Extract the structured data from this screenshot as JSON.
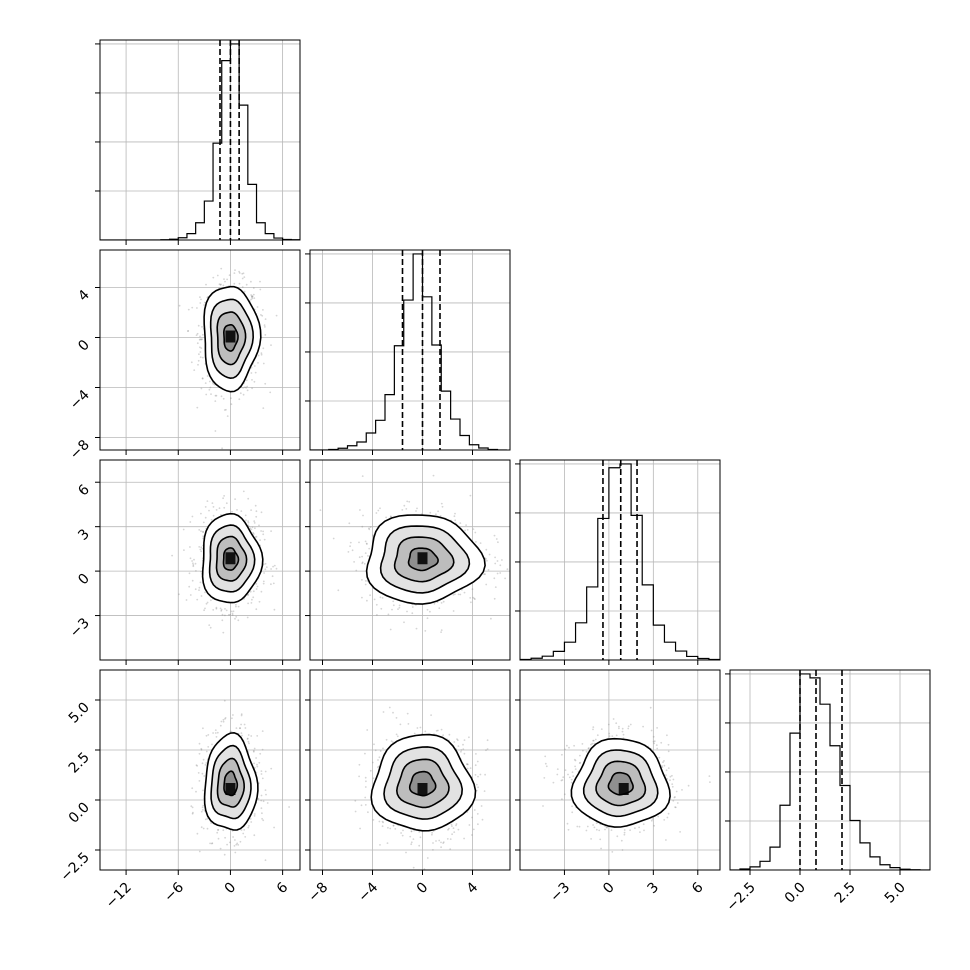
{
  "chart_data": {
    "type": "corner",
    "grid": true,
    "variables": [
      {
        "ticks": [
          -12,
          -6,
          0,
          6
        ],
        "tick_labels": [
          "−12",
          "−6",
          "0",
          "6"
        ],
        "range": [
          -15,
          8
        ],
        "quantiles": [
          -1.2,
          0,
          1.0
        ],
        "bin_edges": [
          -15,
          -14,
          -13,
          -12,
          -11,
          -10,
          -9,
          -8,
          -7,
          -6,
          -5,
          -4,
          -3,
          -2,
          -1,
          0,
          1,
          2,
          3,
          4,
          5,
          6,
          7,
          8
        ],
        "hist_counts": [
          0,
          0,
          0,
          0,
          0,
          0,
          0,
          1,
          3,
          8,
          23,
          62,
          140,
          348,
          645,
          705,
          485,
          200,
          62,
          23,
          7,
          2,
          1
        ]
      },
      {
        "ticks": [
          -8,
          -4,
          0,
          4
        ],
        "tick_labels": [
          "−8",
          "−4",
          "0",
          "4"
        ],
        "range": [
          -9,
          7
        ],
        "quantiles": [
          -1.6,
          0,
          1.4
        ],
        "bin_edges": [
          -9,
          -8.25,
          -7.5,
          -6.75,
          -6,
          -5.25,
          -4.5,
          -3.75,
          -3,
          -2.25,
          -1.5,
          -0.75,
          0,
          0.75,
          1.5,
          2.25,
          3,
          3.75,
          4.5,
          5.25,
          6,
          6.75
        ],
        "hist_counts": [
          0,
          0,
          2,
          7,
          17,
          32,
          68,
          119,
          222,
          418,
          601,
          786,
          614,
          421,
          236,
          124,
          58,
          21,
          8,
          2,
          0
        ]
      },
      {
        "ticks": [
          -3,
          0,
          3,
          6
        ],
        "tick_labels": [
          "−3",
          "0",
          "3",
          "6"
        ],
        "range": [
          -6,
          7.5
        ],
        "quantiles": [
          -0.4,
          0.8,
          1.9
        ],
        "bin_edges": [
          -6,
          -5.25,
          -4.5,
          -3.75,
          -3,
          -2.25,
          -1.5,
          -0.75,
          0,
          0.75,
          1.5,
          2.25,
          3,
          3.75,
          4.5,
          5.25,
          6,
          6.75,
          7.5
        ],
        "hist_counts": [
          2,
          7,
          15,
          34,
          70,
          146,
          287,
          556,
          755,
          770,
          568,
          295,
          137,
          70,
          35,
          14,
          6,
          2
        ]
      },
      {
        "ticks": [
          -2.5,
          0.0,
          2.5,
          5.0
        ],
        "tick_labels": [
          "−2.5",
          "0.0",
          "2.5",
          "5.0"
        ],
        "range": [
          -3.5,
          6.5
        ],
        "quantiles": [
          0,
          0.8,
          2.1
        ],
        "bin_edges": [
          -3.5,
          -3.0,
          -2.5,
          -2.0,
          -1.5,
          -1.0,
          -0.5,
          0,
          0.5,
          1.0,
          1.5,
          2.0,
          2.5,
          3.0,
          3.5,
          4.0,
          4.5,
          5.0,
          5.5,
          6.0,
          6.5
        ],
        "hist_counts": [
          0,
          4,
          12,
          33,
          87,
          246,
          520,
          745,
          730,
          630,
          472,
          321,
          188,
          103,
          50,
          20,
          9,
          3,
          1,
          0
        ]
      }
    ],
    "pairs": [
      {
        "row": 1,
        "col": 0,
        "center": [
          0.0,
          0.0
        ],
        "sigma": [
          1.6,
          2.1
        ],
        "peak_cells": [
          [
            0.0,
            0.0
          ]
        ]
      },
      {
        "row": 2,
        "col": 0,
        "center": [
          0.0,
          0.8
        ],
        "sigma": [
          1.7,
          1.5
        ],
        "peak_cells": [
          [
            0.0,
            0.8
          ]
        ]
      },
      {
        "row": 2,
        "col": 1,
        "center": [
          0.0,
          0.8
        ],
        "sigma": [
          2.3,
          1.5
        ],
        "peak_cells": [
          [
            0.0,
            0.8
          ]
        ]
      },
      {
        "row": 3,
        "col": 0,
        "center": [
          0.0,
          0.8
        ],
        "sigma": [
          1.5,
          1.2
        ],
        "peak_cells": [
          [
            0.0,
            0.5
          ]
        ]
      },
      {
        "row": 3,
        "col": 1,
        "center": [
          0.0,
          0.8
        ],
        "sigma": [
          2.0,
          1.2
        ],
        "peak_cells": [
          [
            0.0,
            0.5
          ]
        ]
      },
      {
        "row": 3,
        "col": 2,
        "center": [
          0.8,
          0.8
        ],
        "sigma": [
          1.6,
          1.1
        ],
        "peak_cells": [
          [
            1.0,
            0.5
          ]
        ]
      }
    ]
  }
}
